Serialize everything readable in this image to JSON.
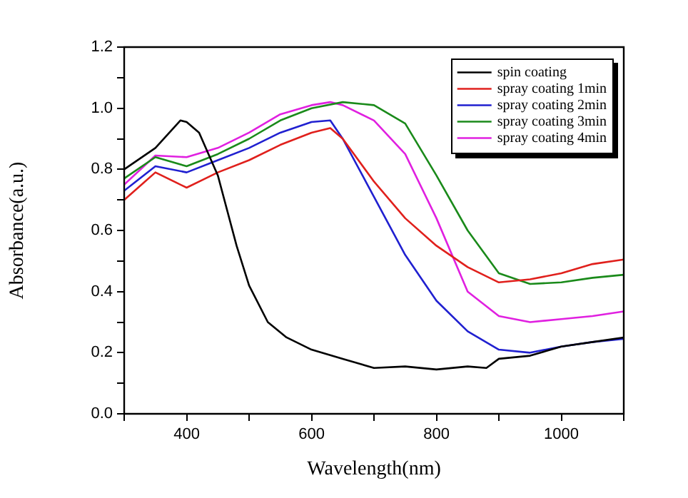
{
  "chart_data": {
    "type": "line",
    "xlabel": "Wavelength(nm)",
    "ylabel": "Absorbance(a.u.)",
    "xlim": [
      300,
      1100
    ],
    "ylim": [
      0,
      1.2
    ],
    "xticks": [
      {
        "value": 300,
        "label": null
      },
      400,
      {
        "value": 500,
        "label": null
      },
      600,
      {
        "value": 700,
        "label": null
      },
      800,
      {
        "value": 900,
        "label": null
      },
      1000,
      {
        "value": 1100,
        "label": null
      }
    ],
    "yticks": [
      {
        "value": 0,
        "label": "0.0"
      },
      {
        "value": 0.1,
        "label": null
      },
      {
        "value": 0.2,
        "label": "0.2"
      },
      {
        "value": 0.3,
        "label": null
      },
      {
        "value": 0.4,
        "label": "0.4"
      },
      {
        "value": 0.5,
        "label": null
      },
      {
        "value": 0.6,
        "label": "0.6"
      },
      {
        "value": 0.7,
        "label": null
      },
      {
        "value": 0.8,
        "label": "0.8"
      },
      {
        "value": 0.9,
        "label": null
      },
      {
        "value": 1,
        "label": "1.0"
      },
      {
        "value": 1.1,
        "label": null
      },
      {
        "value": 1.2,
        "label": "1.2"
      }
    ],
    "grid": false,
    "legend": "top right",
    "marker": "none",
    "line_style": "solid",
    "series": [
      {
        "name": "spin coating",
        "color": "#000000",
        "x": [
          300,
          350,
          390,
          400,
          420,
          450,
          480,
          500,
          530,
          560,
          600,
          650,
          700,
          750,
          800,
          850,
          880,
          900,
          950,
          1000,
          1050,
          1100
        ],
        "values": [
          0.8,
          0.87,
          0.96,
          0.955,
          0.92,
          0.78,
          0.55,
          0.42,
          0.3,
          0.25,
          0.21,
          0.18,
          0.15,
          0.155,
          0.145,
          0.155,
          0.15,
          0.18,
          0.19,
          0.22,
          0.235,
          0.25
        ]
      },
      {
        "name": "spray coating 1min",
        "color": "#e0201c",
        "x": [
          300,
          350,
          400,
          450,
          500,
          550,
          600,
          630,
          650,
          700,
          750,
          800,
          850,
          900,
          950,
          1000,
          1050,
          1100
        ],
        "values": [
          0.7,
          0.79,
          0.74,
          0.79,
          0.83,
          0.88,
          0.92,
          0.935,
          0.9,
          0.76,
          0.64,
          0.55,
          0.48,
          0.43,
          0.44,
          0.46,
          0.49,
          0.505
        ]
      },
      {
        "name": "spray coating 2min",
        "color": "#2020d0",
        "x": [
          300,
          350,
          400,
          450,
          500,
          550,
          600,
          630,
          650,
          700,
          750,
          800,
          850,
          900,
          950,
          1000,
          1050,
          1100
        ],
        "values": [
          0.73,
          0.81,
          0.79,
          0.83,
          0.87,
          0.92,
          0.955,
          0.96,
          0.9,
          0.71,
          0.52,
          0.37,
          0.27,
          0.21,
          0.2,
          0.22,
          0.235,
          0.245
        ]
      },
      {
        "name": "spray coating 3min",
        "color": "#1a8a1a",
        "x": [
          300,
          350,
          400,
          450,
          500,
          550,
          600,
          650,
          700,
          750,
          800,
          850,
          900,
          950,
          1000,
          1050,
          1100
        ],
        "values": [
          0.77,
          0.84,
          0.81,
          0.85,
          0.9,
          0.96,
          1.0,
          1.02,
          1.01,
          0.95,
          0.78,
          0.6,
          0.46,
          0.425,
          0.43,
          0.445,
          0.455
        ]
      },
      {
        "name": "spray coating 4min",
        "color": "#e020e0",
        "x": [
          300,
          350,
          400,
          450,
          500,
          550,
          600,
          630,
          650,
          700,
          750,
          800,
          850,
          900,
          950,
          1000,
          1050,
          1100
        ],
        "values": [
          0.75,
          0.845,
          0.84,
          0.87,
          0.92,
          0.98,
          1.01,
          1.02,
          1.01,
          0.96,
          0.85,
          0.64,
          0.4,
          0.32,
          0.3,
          0.31,
          0.32,
          0.335
        ]
      }
    ]
  }
}
